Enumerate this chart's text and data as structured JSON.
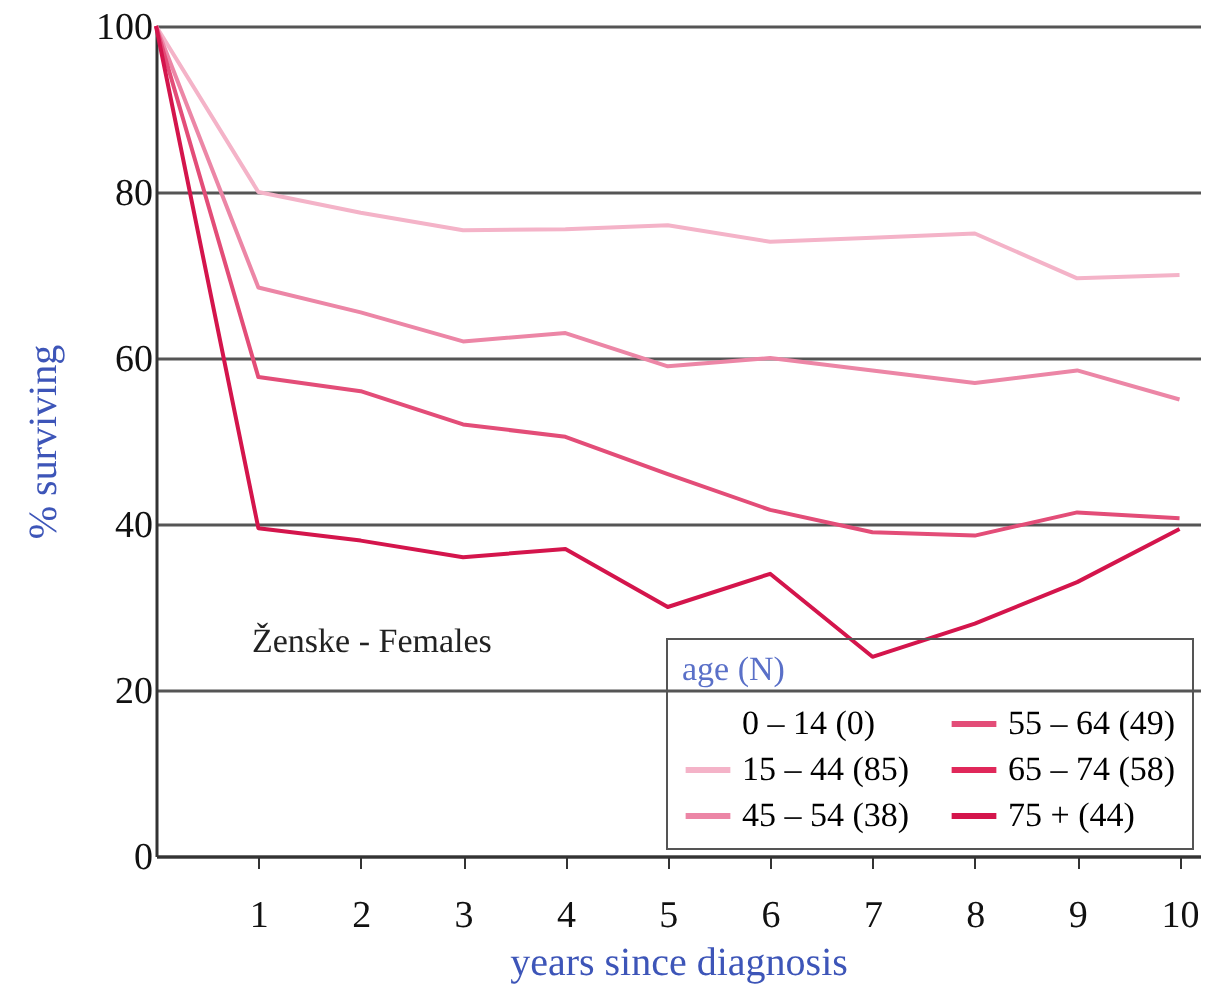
{
  "chart_data": {
    "type": "line",
    "xlabel": "years since diagnosis",
    "ylabel": "% surviving",
    "legend_title": "age (N)",
    "annotations": [
      "Ženske - Females"
    ],
    "x": [
      0,
      1,
      2,
      3,
      4,
      5,
      6,
      7,
      8,
      9,
      10
    ],
    "series": [
      {
        "name": "0 – 14 (0)",
        "values": [
          null,
          null,
          null,
          null,
          null,
          null,
          null,
          null,
          null,
          null,
          null
        ]
      },
      {
        "name": "15 – 44 (85)",
        "color": "#f4b3c8",
        "values": [
          100,
          80,
          77.5,
          75.4,
          75.5,
          76,
          74,
          74.5,
          75,
          69.6,
          70
        ]
      },
      {
        "name": "45 – 54 (38)",
        "color": "#ec86a6",
        "values": [
          100,
          68.5,
          65.5,
          62,
          63,
          59,
          60,
          58.5,
          57,
          58.5,
          55
        ]
      },
      {
        "name": "55 – 64 (49)",
        "color": "#e34d78",
        "values": [
          100,
          57.7,
          56,
          52,
          50.5,
          46,
          41.7,
          39,
          38.6,
          41.4,
          40.7
        ]
      },
      {
        "name": "65 – 74 (58)",
        "color": "#e0285a",
        "values": [
          null,
          null,
          null,
          null,
          null,
          null,
          null,
          null,
          null,
          null,
          null
        ]
      },
      {
        "name": "75 + (44)",
        "color": "#d4154c",
        "values": [
          100,
          39.5,
          38,
          36,
          37,
          30,
          34,
          24,
          28,
          33,
          39.4
        ]
      }
    ],
    "xlim": [
      0,
      10.2
    ],
    "xticks": [
      1,
      2,
      3,
      4,
      5,
      6,
      7,
      8,
      9,
      10
    ],
    "ylim": [
      0,
      100
    ],
    "yticks": [
      0,
      20,
      40,
      60,
      80,
      100
    ],
    "grid": "y",
    "legend": "bottom right"
  }
}
